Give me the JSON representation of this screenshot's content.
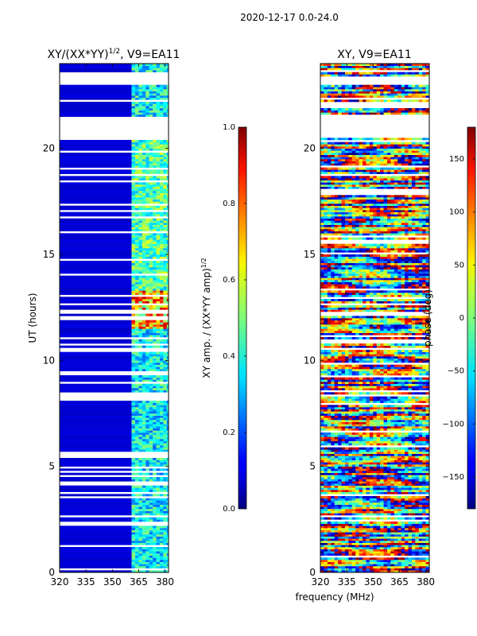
{
  "figure": {
    "suptitle": "2020-12-17 0.0-24.0",
    "shared_xlabel": "frequency (MHz)"
  },
  "chart_data": [
    {
      "type": "heatmap",
      "title_prefix": "XY/(XX*YY)",
      "title_exponent": "1/2",
      "title_suffix": ", V9=EA11",
      "title_display": "XY/(XX*YY)^(1/2), V9=EA11",
      "xlabel": "",
      "ylabel": "UT (hours)",
      "xlim": [
        320,
        382
      ],
      "ylim": [
        0,
        24
      ],
      "xticks": [
        "320",
        "335",
        "350",
        "365",
        "380"
      ],
      "xtick_values": [
        320,
        335,
        350,
        365,
        380
      ],
      "yticks": [
        "0",
        "5",
        "10",
        "15",
        "20"
      ],
      "ytick_values": [
        0,
        5,
        10,
        15,
        20
      ],
      "active_freq_band_mhz": [
        361,
        382
      ],
      "strong_signal_hours": [
        11.5,
        13.3
      ],
      "blank_hours": [
        [
          20.4,
          21.5
        ],
        [
          23.0,
          23.5
        ]
      ],
      "colorbar": {
        "label_prefix": "XY amp. / (XX*YY amp)",
        "label_exponent": "1/2",
        "label_display": "XY amp. / (XX*YY amp)^(1/2)",
        "range": [
          0.0,
          1.0
        ],
        "ticks": [
          "0.0",
          "0.2",
          "0.4",
          "0.6",
          "0.8",
          "1.0"
        ],
        "tick_values": [
          0.0,
          0.2,
          0.4,
          0.6,
          0.8,
          1.0
        ]
      }
    },
    {
      "type": "heatmap",
      "title": "XY, V9=EA11",
      "xlabel": "frequency (MHz)",
      "ylabel": "",
      "xlim": [
        320,
        382
      ],
      "ylim": [
        0,
        24
      ],
      "xticks": [
        "320",
        "335",
        "350",
        "365",
        "380"
      ],
      "xtick_values": [
        320,
        335,
        350,
        365,
        380
      ],
      "yticks": [
        "0",
        "5",
        "10",
        "15",
        "20"
      ],
      "ytick_values": [
        0,
        5,
        10,
        15,
        20
      ],
      "blank_hours": [
        [
          20.5,
          21.6
        ],
        [
          23.0,
          23.4
        ]
      ],
      "colorbar": {
        "label": "phase (deg)",
        "range": [
          -180,
          180
        ],
        "ticks": [
          "−150",
          "−100",
          "−50",
          "0",
          "50",
          "100",
          "150"
        ],
        "tick_values": [
          -150,
          -100,
          -50,
          0,
          50,
          100,
          150
        ]
      }
    }
  ]
}
